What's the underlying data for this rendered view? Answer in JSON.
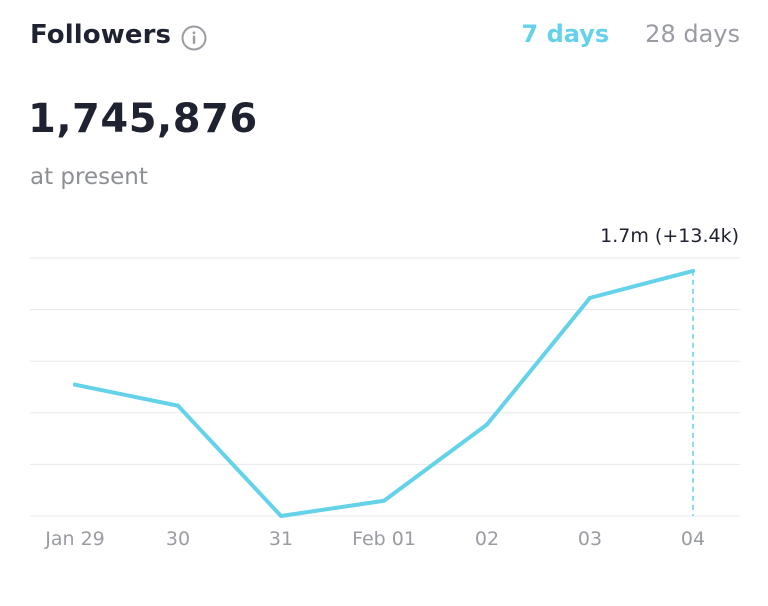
{
  "header": {
    "title": "Followers",
    "tabs": [
      {
        "label": "7 days",
        "active": true
      },
      {
        "label": "28 days",
        "active": false
      }
    ]
  },
  "summary": {
    "value": "1,745,876",
    "caption": "at present"
  },
  "colors": {
    "accent": "#64d2e9",
    "text": "#1f2230",
    "muted": "#9a9ca3",
    "grid": "#e7e8eb"
  },
  "icons": {
    "info": "info-icon"
  },
  "chart_data": {
    "type": "line",
    "categories": [
      "Jan 29",
      "30",
      "31",
      "Feb 01",
      "02",
      "03",
      "04"
    ],
    "series": [
      {
        "values": [
          1.7362,
          1.7344,
          1.725,
          1.7263,
          1.7328,
          1.7436,
          1.7459
        ]
      }
    ],
    "ylim": [
      1.725,
      1.747
    ],
    "grid": true,
    "highlight_label": "1.7m (+13.4k)",
    "highlight_index": 6
  }
}
